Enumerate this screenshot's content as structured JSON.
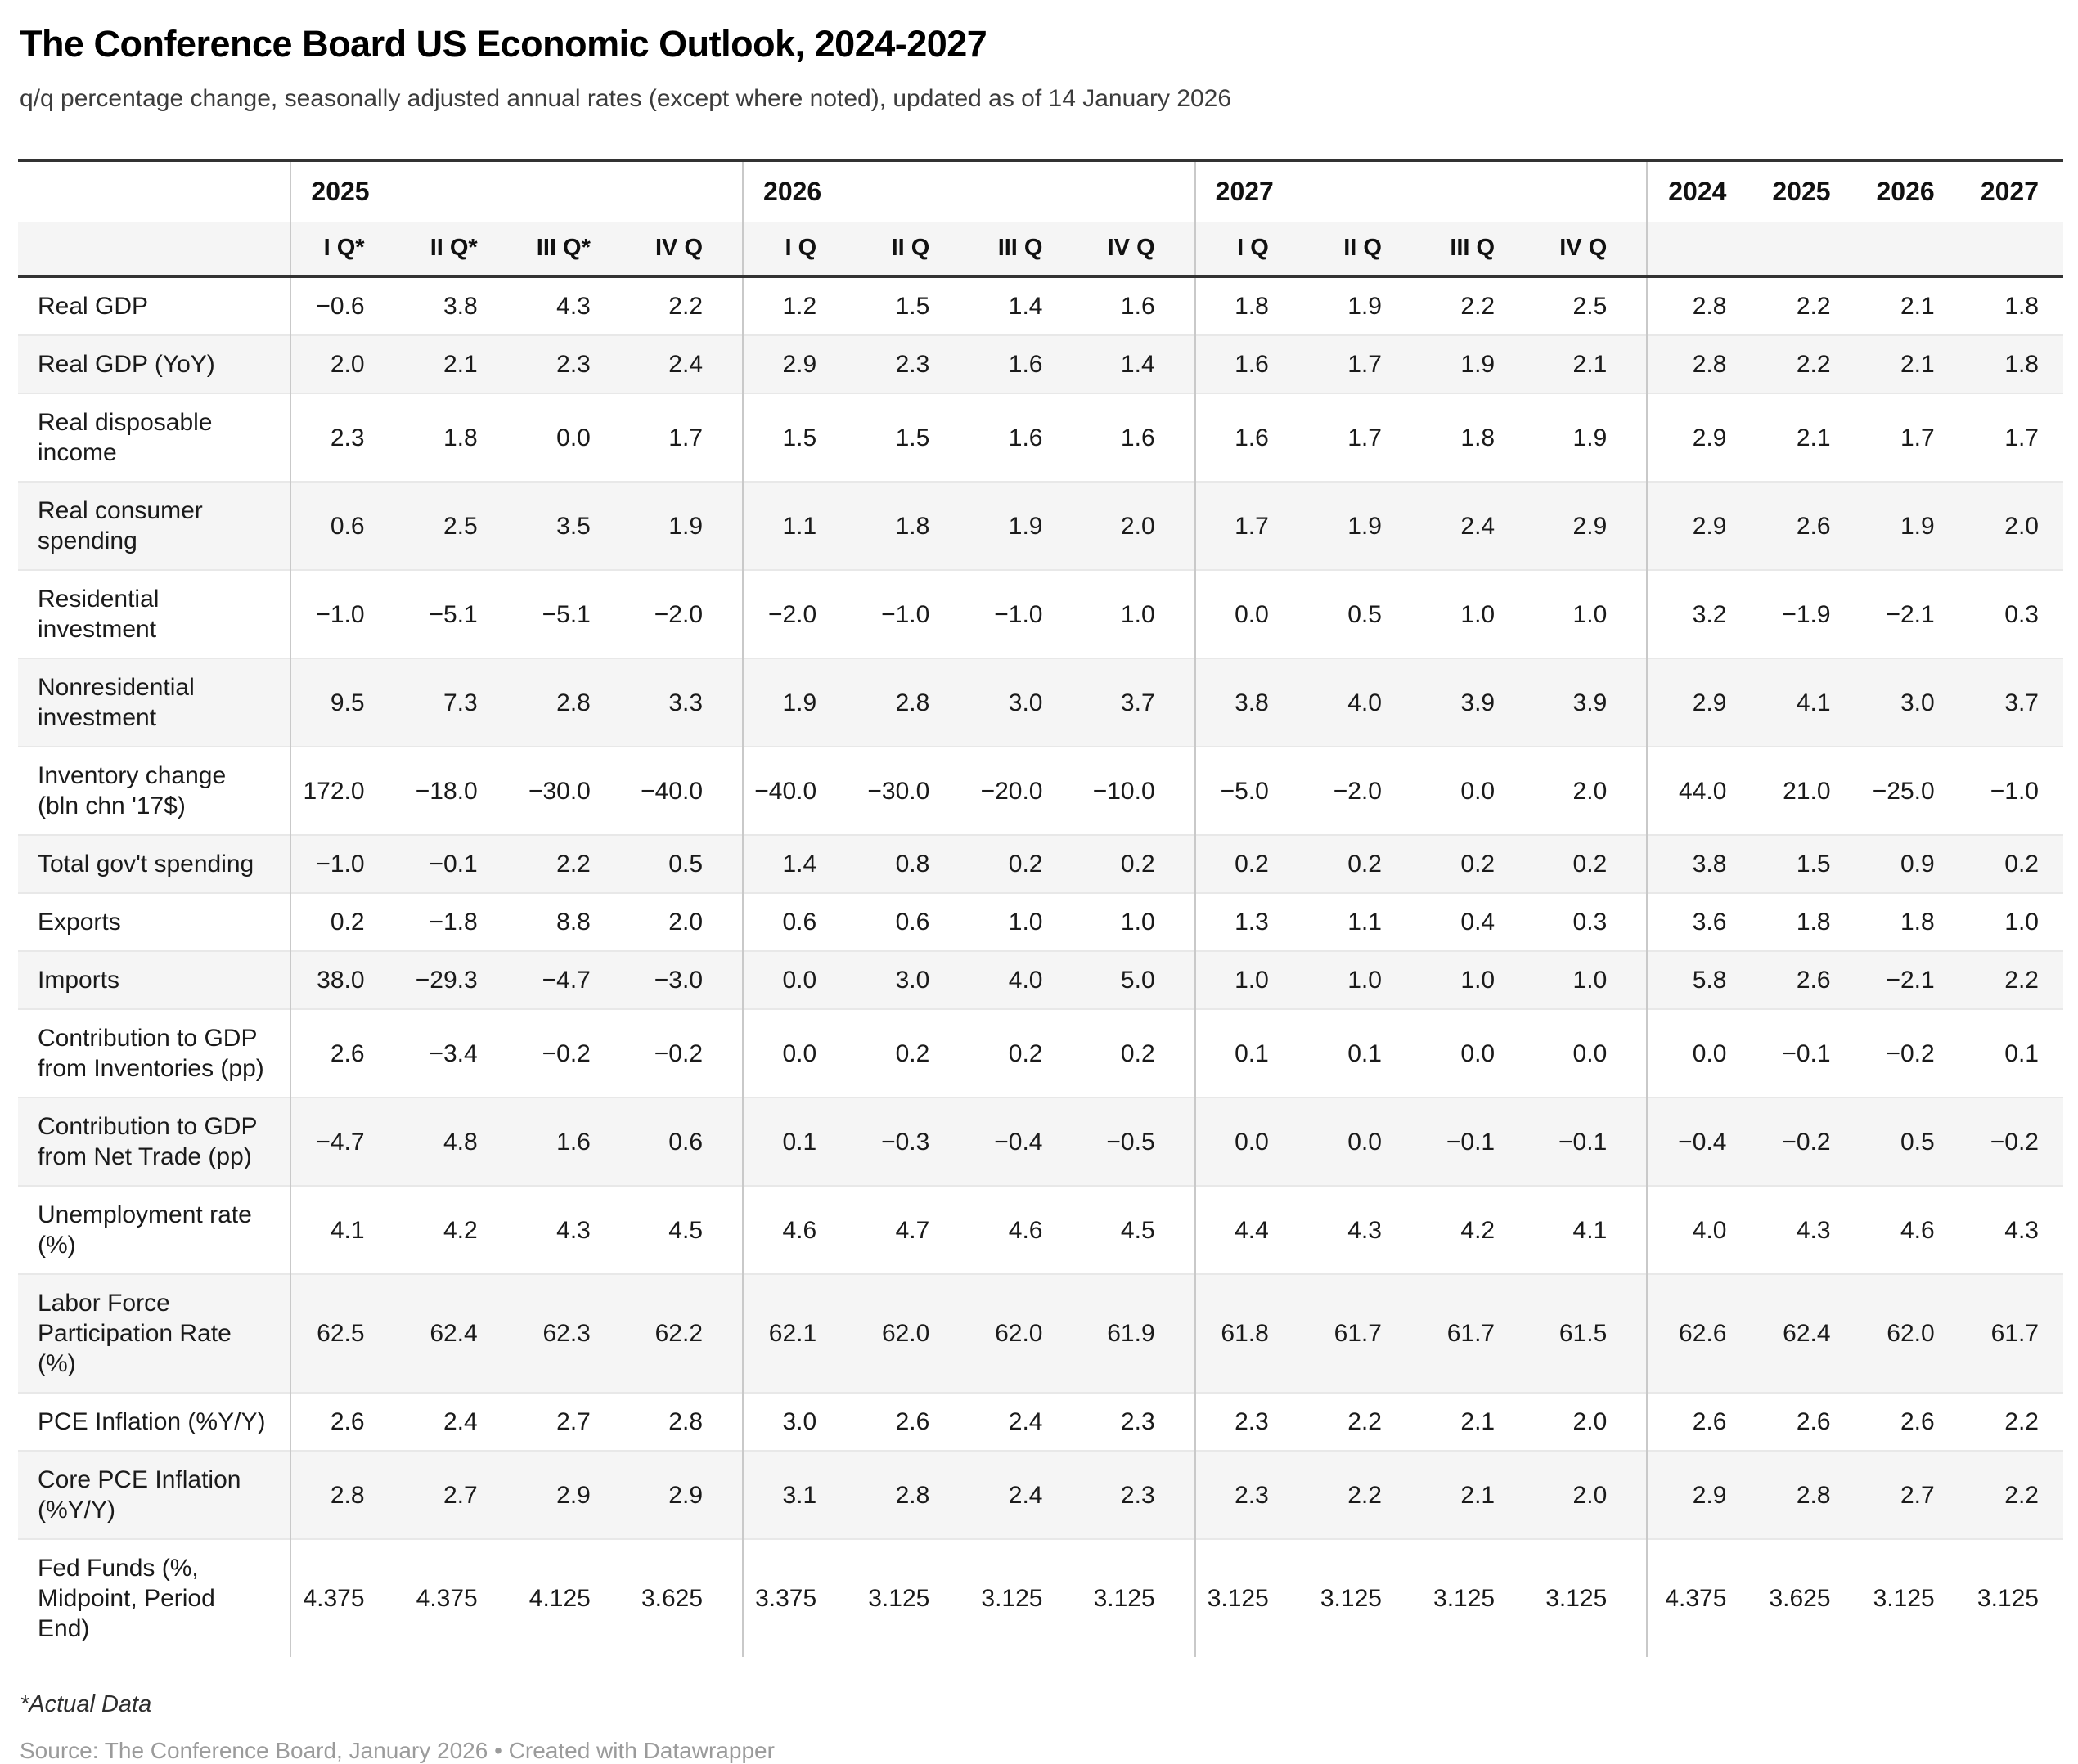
{
  "header": {
    "title": "The Conference Board US Economic Outlook, 2024-2027",
    "subtitle": "q/q percentage change, seasonally adjusted annual rates (except where noted), updated as of 14 January 2026"
  },
  "footer": {
    "footnote": "*Actual Data",
    "source": "Source: The Conference Board, January 2026 • Created with Datawrapper"
  },
  "colors": {
    "thick_border": "#333333",
    "group_divider": "#c9c9c9",
    "row_line": "#e8e8e8",
    "stripe": "#f5f5f5",
    "source_text": "#9b9b9b"
  },
  "chart_data": {
    "type": "table",
    "title": "The Conference Board US Economic Outlook, 2024-2027",
    "subtitle": "q/q percentage change, seasonally adjusted annual rates (except where noted), updated as of 14 January 2026",
    "column_groups": [
      {
        "label": "2025",
        "columns": [
          "I Q*",
          "II Q*",
          "III Q*",
          "IV Q"
        ]
      },
      {
        "label": "2026",
        "columns": [
          "I Q",
          "II Q",
          "III Q",
          "IV Q"
        ]
      },
      {
        "label": "2027",
        "columns": [
          "I Q",
          "II Q",
          "III Q",
          "IV Q"
        ]
      }
    ],
    "annual_years": [
      "2024",
      "2025",
      "2026",
      "2027"
    ],
    "rows": [
      {
        "label": "Real GDP",
        "q2025": [
          "−0.6",
          "3.8",
          "4.3",
          "2.2"
        ],
        "q2026": [
          "1.2",
          "1.5",
          "1.4",
          "1.6"
        ],
        "q2027": [
          "1.8",
          "1.9",
          "2.2",
          "2.5"
        ],
        "annual": [
          "2.8",
          "2.2",
          "2.1",
          "1.8"
        ]
      },
      {
        "label": "Real GDP (YoY)",
        "q2025": [
          "2.0",
          "2.1",
          "2.3",
          "2.4"
        ],
        "q2026": [
          "2.9",
          "2.3",
          "1.6",
          "1.4"
        ],
        "q2027": [
          "1.6",
          "1.7",
          "1.9",
          "2.1"
        ],
        "annual": [
          "2.8",
          "2.2",
          "2.1",
          "1.8"
        ]
      },
      {
        "label": "Real disposable income",
        "q2025": [
          "2.3",
          "1.8",
          "0.0",
          "1.7"
        ],
        "q2026": [
          "1.5",
          "1.5",
          "1.6",
          "1.6"
        ],
        "q2027": [
          "1.6",
          "1.7",
          "1.8",
          "1.9"
        ],
        "annual": [
          "2.9",
          "2.1",
          "1.7",
          "1.7"
        ]
      },
      {
        "label": "Real consumer spending",
        "q2025": [
          "0.6",
          "2.5",
          "3.5",
          "1.9"
        ],
        "q2026": [
          "1.1",
          "1.8",
          "1.9",
          "2.0"
        ],
        "q2027": [
          "1.7",
          "1.9",
          "2.4",
          "2.9"
        ],
        "annual": [
          "2.9",
          "2.6",
          "1.9",
          "2.0"
        ]
      },
      {
        "label": "Residential investment",
        "q2025": [
          "−1.0",
          "−5.1",
          "−5.1",
          "−2.0"
        ],
        "q2026": [
          "−2.0",
          "−1.0",
          "−1.0",
          "1.0"
        ],
        "q2027": [
          "0.0",
          "0.5",
          "1.0",
          "1.0"
        ],
        "annual": [
          "3.2",
          "−1.9",
          "−2.1",
          "0.3"
        ]
      },
      {
        "label": "Nonresidential investment",
        "q2025": [
          "9.5",
          "7.3",
          "2.8",
          "3.3"
        ],
        "q2026": [
          "1.9",
          "2.8",
          "3.0",
          "3.7"
        ],
        "q2027": [
          "3.8",
          "4.0",
          "3.9",
          "3.9"
        ],
        "annual": [
          "2.9",
          "4.1",
          "3.0",
          "3.7"
        ]
      },
      {
        "label": "Inventory change (bln chn '17$)",
        "q2025": [
          "172.0",
          "−18.0",
          "−30.0",
          "−40.0"
        ],
        "q2026": [
          "−40.0",
          "−30.0",
          "−20.0",
          "−10.0"
        ],
        "q2027": [
          "−5.0",
          "−2.0",
          "0.0",
          "2.0"
        ],
        "annual": [
          "44.0",
          "21.0",
          "−25.0",
          "−1.0"
        ]
      },
      {
        "label": "Total gov't spending",
        "q2025": [
          "−1.0",
          "−0.1",
          "2.2",
          "0.5"
        ],
        "q2026": [
          "1.4",
          "0.8",
          "0.2",
          "0.2"
        ],
        "q2027": [
          "0.2",
          "0.2",
          "0.2",
          "0.2"
        ],
        "annual": [
          "3.8",
          "1.5",
          "0.9",
          "0.2"
        ]
      },
      {
        "label": "Exports",
        "q2025": [
          "0.2",
          "−1.8",
          "8.8",
          "2.0"
        ],
        "q2026": [
          "0.6",
          "0.6",
          "1.0",
          "1.0"
        ],
        "q2027": [
          "1.3",
          "1.1",
          "0.4",
          "0.3"
        ],
        "annual": [
          "3.6",
          "1.8",
          "1.8",
          "1.0"
        ]
      },
      {
        "label": "Imports",
        "q2025": [
          "38.0",
          "−29.3",
          "−4.7",
          "−3.0"
        ],
        "q2026": [
          "0.0",
          "3.0",
          "4.0",
          "5.0"
        ],
        "q2027": [
          "1.0",
          "1.0",
          "1.0",
          "1.0"
        ],
        "annual": [
          "5.8",
          "2.6",
          "−2.1",
          "2.2"
        ]
      },
      {
        "label": "Contribution to GDP from Inventories (pp)",
        "q2025": [
          "2.6",
          "−3.4",
          "−0.2",
          "−0.2"
        ],
        "q2026": [
          "0.0",
          "0.2",
          "0.2",
          "0.2"
        ],
        "q2027": [
          "0.1",
          "0.1",
          "0.0",
          "0.0"
        ],
        "annual": [
          "0.0",
          "−0.1",
          "−0.2",
          "0.1"
        ]
      },
      {
        "label": "Contribution to GDP from Net Trade (pp)",
        "q2025": [
          "−4.7",
          "4.8",
          "1.6",
          "0.6"
        ],
        "q2026": [
          "0.1",
          "−0.3",
          "−0.4",
          "−0.5"
        ],
        "q2027": [
          "0.0",
          "0.0",
          "−0.1",
          "−0.1"
        ],
        "annual": [
          "−0.4",
          "−0.2",
          "0.5",
          "−0.2"
        ]
      },
      {
        "label": "Unemployment rate (%)",
        "q2025": [
          "4.1",
          "4.2",
          "4.3",
          "4.5"
        ],
        "q2026": [
          "4.6",
          "4.7",
          "4.6",
          "4.5"
        ],
        "q2027": [
          "4.4",
          "4.3",
          "4.2",
          "4.1"
        ],
        "annual": [
          "4.0",
          "4.3",
          "4.6",
          "4.3"
        ]
      },
      {
        "label": "Labor Force Participation Rate (%)",
        "q2025": [
          "62.5",
          "62.4",
          "62.3",
          "62.2"
        ],
        "q2026": [
          "62.1",
          "62.0",
          "62.0",
          "61.9"
        ],
        "q2027": [
          "61.8",
          "61.7",
          "61.7",
          "61.5"
        ],
        "annual": [
          "62.6",
          "62.4",
          "62.0",
          "61.7"
        ]
      },
      {
        "label": "PCE Inflation (%Y/Y)",
        "q2025": [
          "2.6",
          "2.4",
          "2.7",
          "2.8"
        ],
        "q2026": [
          "3.0",
          "2.6",
          "2.4",
          "2.3"
        ],
        "q2027": [
          "2.3",
          "2.2",
          "2.1",
          "2.0"
        ],
        "annual": [
          "2.6",
          "2.6",
          "2.6",
          "2.2"
        ]
      },
      {
        "label": "Core PCE Inflation (%Y/Y)",
        "q2025": [
          "2.8",
          "2.7",
          "2.9",
          "2.9"
        ],
        "q2026": [
          "3.1",
          "2.8",
          "2.4",
          "2.3"
        ],
        "q2027": [
          "2.3",
          "2.2",
          "2.1",
          "2.0"
        ],
        "annual": [
          "2.9",
          "2.8",
          "2.7",
          "2.2"
        ]
      },
      {
        "label": "Fed Funds (%, Midpoint, Period End)",
        "q2025": [
          "4.375",
          "4.375",
          "4.125",
          "3.625"
        ],
        "q2026": [
          "3.375",
          "3.125",
          "3.125",
          "3.125"
        ],
        "q2027": [
          "3.125",
          "3.125",
          "3.125",
          "3.125"
        ],
        "annual": [
          "4.375",
          "3.625",
          "3.125",
          "3.125"
        ]
      }
    ]
  }
}
